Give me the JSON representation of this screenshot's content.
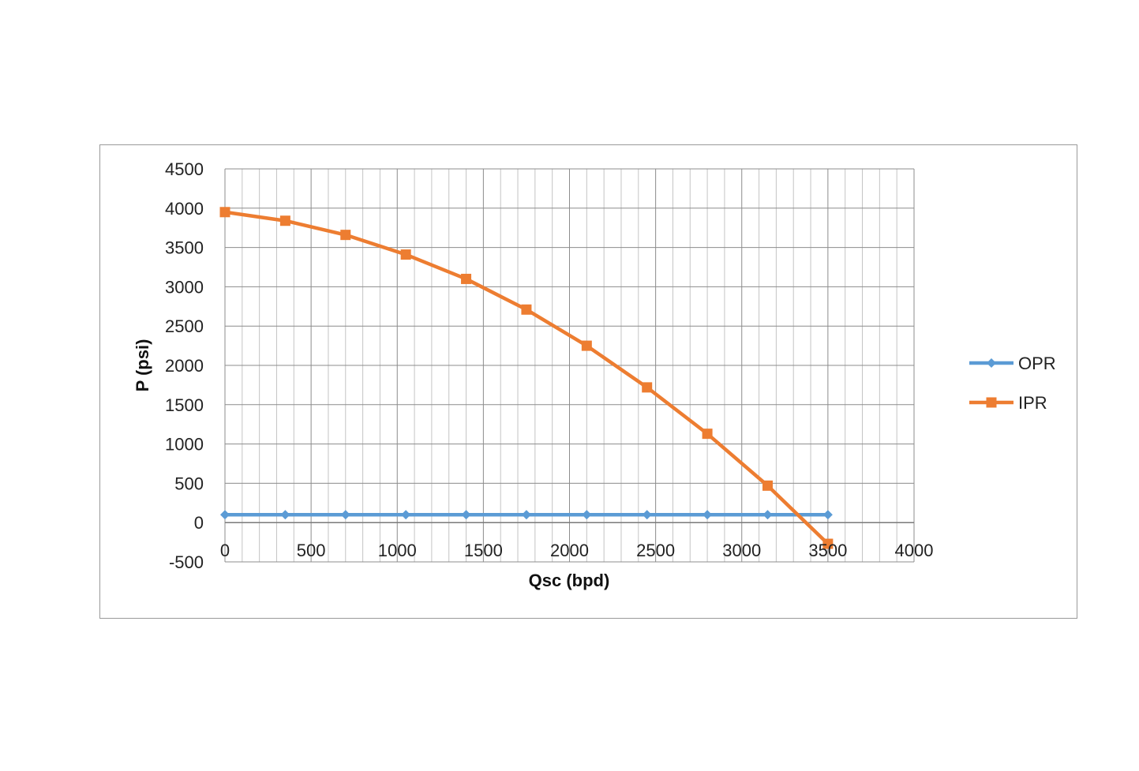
{
  "chart_data": {
    "type": "line",
    "xlabel": "Qsc (bpd)",
    "ylabel": "P (psi)",
    "xlim": [
      0,
      4000
    ],
    "ylim": [
      -500,
      4500
    ],
    "x_ticks": [
      0,
      500,
      1000,
      1500,
      2000,
      2500,
      3000,
      3500,
      4000
    ],
    "y_ticks": [
      -500,
      0,
      500,
      1000,
      1500,
      2000,
      2500,
      3000,
      3500,
      4000,
      4500
    ],
    "grid": true,
    "legend_position": "right",
    "series": [
      {
        "name": "OPR",
        "color": "#5B9BD5",
        "marker": "diamond",
        "x": [
          0,
          350,
          700,
          1050,
          1400,
          1750,
          2100,
          2450,
          2800,
          3150,
          3500
        ],
        "y": [
          100,
          100,
          100,
          100,
          100,
          100,
          100,
          100,
          100,
          100,
          100
        ]
      },
      {
        "name": "IPR",
        "color": "#ED7D31",
        "marker": "square",
        "x": [
          0,
          350,
          700,
          1050,
          1400,
          1750,
          2100,
          2450,
          2800,
          3150,
          3500
        ],
        "y": [
          3950,
          3840,
          3660,
          3410,
          3100,
          2710,
          2250,
          1720,
          1130,
          470,
          -270
        ]
      }
    ]
  }
}
